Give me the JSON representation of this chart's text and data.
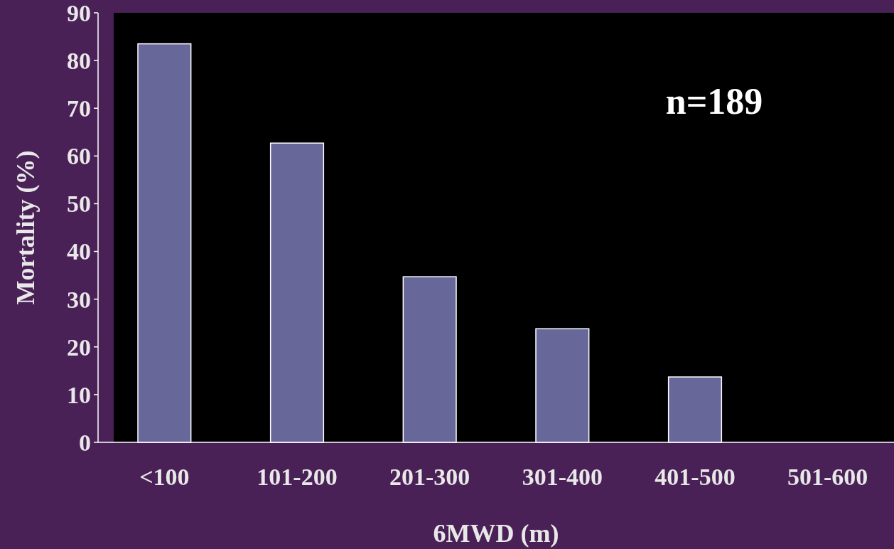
{
  "chart_data": {
    "type": "bar",
    "xlabel": "6MWD (m)",
    "ylabel": "Mortality (%)",
    "categories": [
      "<100",
      "101-200",
      "201-300",
      "301-400",
      "401-500",
      "501-600"
    ],
    "values": [
      83.5,
      62.7,
      34.7,
      23.8,
      13.7,
      0
    ],
    "color": "#67679a",
    "ylim": [
      0,
      90
    ],
    "yticks": [
      0,
      10,
      20,
      30,
      40,
      50,
      60,
      70,
      80,
      90
    ],
    "annotations": [
      "n=189"
    ]
  }
}
